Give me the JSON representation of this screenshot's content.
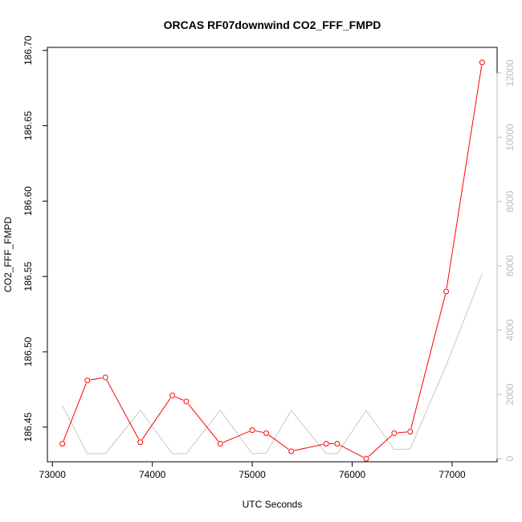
{
  "chart_data": {
    "type": "line",
    "title": "ORCAS RF07downwind CO2_FFF_FMPD",
    "xlabel": "UTC Seconds",
    "ylabel": "CO2_FFF_FMPD",
    "xlim": [
      72950,
      77450
    ],
    "ylim": [
      186.427,
      186.702
    ],
    "y2lim": [
      -100,
      12800
    ],
    "x_ticks": [
      73000,
      74000,
      75000,
      76000,
      77000
    ],
    "x_tick_labels": [
      "73000",
      "74000",
      "75000",
      "76000",
      "77000"
    ],
    "y_ticks": [
      186.45,
      186.5,
      186.55,
      186.6,
      186.65,
      186.7
    ],
    "y_tick_labels": [
      "186.45",
      "186.50",
      "186.55",
      "186.60",
      "186.65",
      "186.70"
    ],
    "y2_ticks": [
      0,
      2000,
      4000,
      6000,
      8000,
      10000,
      12000
    ],
    "y2_tick_labels": [
      "0",
      "2000",
      "4000",
      "6000",
      "8000",
      "10000",
      "12000"
    ],
    "series": [
      {
        "axis": "left",
        "color": "#ff0000",
        "style": "line+points",
        "x": [
          73100,
          73350,
          73530,
          73880,
          74200,
          74340,
          74680,
          75000,
          75140,
          75390,
          75740,
          75850,
          76140,
          76420,
          76580,
          76940,
          77300
        ],
        "y": [
          186.439,
          186.481,
          186.483,
          186.44,
          186.471,
          186.467,
          186.439,
          186.448,
          186.446,
          186.434,
          186.439,
          186.439,
          186.429,
          186.446,
          186.447,
          186.54,
          186.692
        ]
      },
      {
        "axis": "right",
        "color": "#c8c8c8",
        "style": "line",
        "x": [
          73100,
          73350,
          73530,
          73880,
          74200,
          74340,
          74680,
          75000,
          75140,
          75390,
          75740,
          75850,
          76140,
          76420,
          76580,
          76940,
          77300
        ],
        "y": [
          1650,
          150,
          150,
          1500,
          150,
          150,
          1500,
          150,
          170,
          1500,
          150,
          150,
          1500,
          280,
          300,
          2900,
          5750
        ]
      }
    ]
  }
}
